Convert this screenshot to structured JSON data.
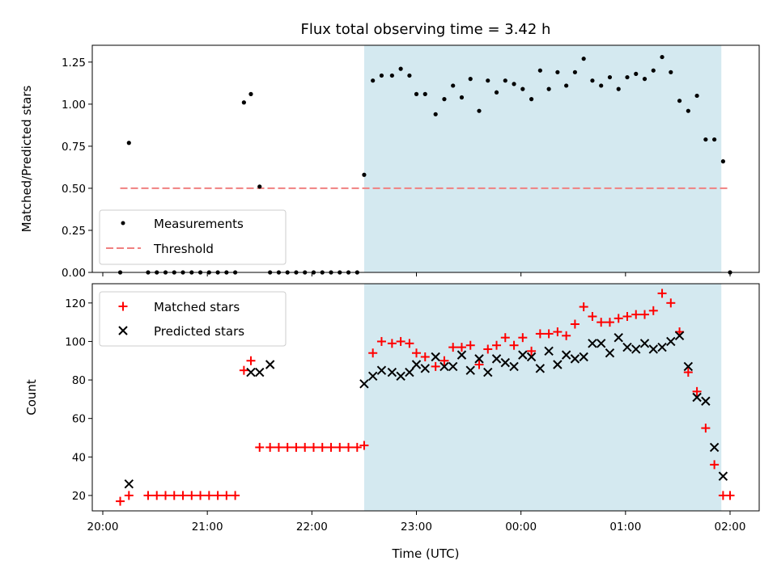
{
  "chart_data": [
    {
      "type": "scatter",
      "title": "Flux total observing time = 3.42 h",
      "xlabel": "",
      "ylabel": "Matched/Predicted stars",
      "ylim": [
        0,
        1.35
      ],
      "yticks": [
        "0.00",
        "0.25",
        "0.50",
        "0.75",
        "1.00",
        "1.25"
      ],
      "shaded_region": {
        "from": "22:30",
        "to": "01:55",
        "color": "#d4e9f0"
      },
      "legend": {
        "placement": "lower-left",
        "entries": [
          "Measurements",
          "Threshold"
        ]
      },
      "threshold": {
        "name": "Threshold",
        "y": 0.5,
        "from": "20:10",
        "to": "02:00",
        "color": "#f08080"
      },
      "series": [
        {
          "name": "Measurements",
          "color": "#000000",
          "x": [
            "20:10",
            "20:15",
            "20:26",
            "20:31",
            "20:36",
            "20:41",
            "20:46",
            "20:51",
            "20:56",
            "21:01",
            "21:06",
            "21:11",
            "21:16",
            "21:21",
            "21:25",
            "21:30",
            "21:36",
            "21:41",
            "21:46",
            "21:51",
            "21:56",
            "22:01",
            "22:06",
            "22:11",
            "22:16",
            "22:21",
            "22:26",
            "22:30",
            "22:35",
            "22:40",
            "22:46",
            "22:51",
            "22:56",
            "23:00",
            "23:05",
            "23:11",
            "23:16",
            "23:21",
            "23:26",
            "23:31",
            "23:36",
            "23:41",
            "23:46",
            "23:51",
            "23:56",
            "00:01",
            "00:06",
            "00:11",
            "00:16",
            "00:21",
            "00:26",
            "00:31",
            "00:36",
            "00:41",
            "00:46",
            "00:51",
            "00:56",
            "01:01",
            "01:06",
            "01:11",
            "01:16",
            "01:21",
            "01:26",
            "01:31",
            "01:36",
            "01:41",
            "01:46",
            "01:51",
            "01:56",
            "02:00"
          ],
          "y": [
            0.0,
            0.77,
            0.0,
            0.0,
            0.0,
            0.0,
            0.0,
            0.0,
            0.0,
            0.0,
            0.0,
            0.0,
            0.0,
            1.01,
            1.06,
            0.51,
            0.0,
            0.0,
            0.0,
            0.0,
            0.0,
            0.0,
            0.0,
            0.0,
            0.0,
            0.0,
            0.0,
            0.58,
            1.14,
            1.17,
            1.17,
            1.21,
            1.17,
            1.06,
            1.06,
            0.94,
            1.03,
            1.11,
            1.04,
            1.15,
            0.96,
            1.14,
            1.07,
            1.14,
            1.12,
            1.09,
            1.03,
            1.2,
            1.09,
            1.19,
            1.11,
            1.19,
            1.27,
            1.14,
            1.11,
            1.16,
            1.09,
            1.16,
            1.18,
            1.15,
            1.2,
            1.28,
            1.19,
            1.02,
            0.96,
            1.05,
            0.79,
            0.79,
            0.66,
            0.0
          ]
        }
      ]
    },
    {
      "type": "scatter",
      "title": "",
      "xlabel": "Time (UTC)",
      "ylabel": "Count",
      "ylim": [
        12,
        130
      ],
      "yticks": [
        "20",
        "40",
        "60",
        "80",
        "100",
        "120"
      ],
      "xticks": [
        "20:00",
        "21:00",
        "22:00",
        "23:00",
        "00:00",
        "01:00",
        "02:00"
      ],
      "shaded_region": {
        "from": "22:30",
        "to": "01:55",
        "color": "#d4e9f0"
      },
      "legend": {
        "placement": "upper-left",
        "entries": [
          "Matched stars",
          "Predicted stars"
        ]
      },
      "series": [
        {
          "name": "Matched stars",
          "marker": "+",
          "color": "#ff0000",
          "x": [
            "20:10",
            "20:15",
            "20:26",
            "20:31",
            "20:36",
            "20:41",
            "20:46",
            "20:51",
            "20:56",
            "21:01",
            "21:06",
            "21:11",
            "21:16",
            "21:21",
            "21:25",
            "21:30",
            "21:36",
            "21:41",
            "21:46",
            "21:51",
            "21:56",
            "22:01",
            "22:06",
            "22:11",
            "22:16",
            "22:21",
            "22:26",
            "22:30",
            "22:35",
            "22:40",
            "22:46",
            "22:51",
            "22:56",
            "23:00",
            "23:05",
            "23:11",
            "23:16",
            "23:21",
            "23:26",
            "23:31",
            "23:36",
            "23:41",
            "23:46",
            "23:51",
            "23:56",
            "00:01",
            "00:06",
            "00:11",
            "00:16",
            "00:21",
            "00:26",
            "00:31",
            "00:36",
            "00:41",
            "00:46",
            "00:51",
            "00:56",
            "01:01",
            "01:06",
            "01:11",
            "01:16",
            "01:21",
            "01:26",
            "01:31",
            "01:36",
            "01:41",
            "01:46",
            "01:51",
            "01:56",
            "02:00"
          ],
          "y": [
            17,
            20,
            20,
            20,
            20,
            20,
            20,
            20,
            20,
            20,
            20,
            20,
            20,
            85,
            90,
            45,
            45,
            45,
            45,
            45,
            45,
            45,
            45,
            45,
            45,
            45,
            45,
            46,
            94,
            100,
            99,
            100,
            99,
            94,
            92,
            87,
            90,
            97,
            97,
            98,
            88,
            96,
            98,
            102,
            98,
            102,
            95,
            104,
            104,
            105,
            103,
            109,
            118,
            113,
            110,
            110,
            112,
            113,
            114,
            114,
            116,
            125,
            120,
            105,
            84,
            74,
            55,
            36,
            20,
            20
          ]
        },
        {
          "name": "Predicted stars",
          "marker": "x",
          "color": "#000000",
          "x": [
            "20:15",
            "21:25",
            "21:30",
            "21:36",
            "22:30",
            "22:35",
            "22:40",
            "22:46",
            "22:51",
            "22:56",
            "23:00",
            "23:05",
            "23:11",
            "23:16",
            "23:21",
            "23:26",
            "23:31",
            "23:36",
            "23:41",
            "23:46",
            "23:51",
            "23:56",
            "00:01",
            "00:06",
            "00:11",
            "00:16",
            "00:21",
            "00:26",
            "00:31",
            "00:36",
            "00:41",
            "00:46",
            "00:51",
            "00:56",
            "01:01",
            "01:06",
            "01:11",
            "01:16",
            "01:21",
            "01:26",
            "01:31",
            "01:36",
            "01:41",
            "01:46",
            "01:51",
            "01:56"
          ],
          "y": [
            26,
            84,
            84,
            88,
            78,
            82,
            85,
            84,
            82,
            84,
            88,
            86,
            92,
            87,
            87,
            93,
            85,
            91,
            84,
            91,
            89,
            87,
            93,
            92,
            86,
            95,
            88,
            93,
            91,
            92,
            99,
            99,
            94,
            102,
            97,
            96,
            99,
            96,
            97,
            100,
            103,
            87,
            71,
            69,
            45,
            30
          ]
        }
      ]
    }
  ]
}
